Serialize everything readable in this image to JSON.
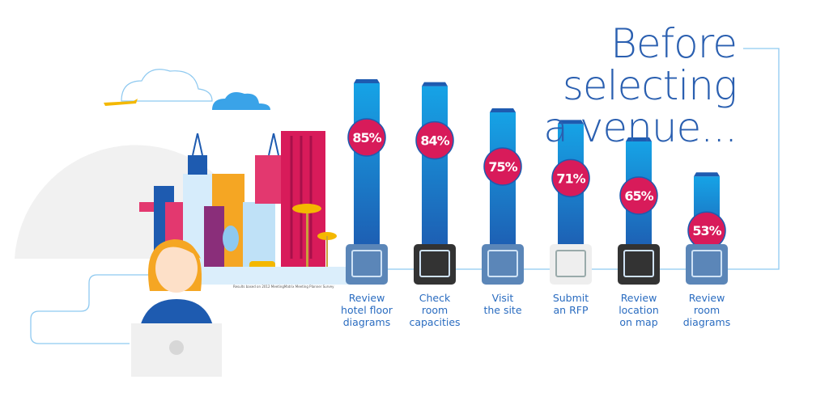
{
  "title": [
    "Before selecting",
    "a venue..."
  ],
  "source_note": "Results based on 2012 MeetingMatrix Meeting Planner Survey",
  "colors": {
    "bar": "#1a8fe0",
    "bar_dark": "#1e5bb0",
    "badge": "#d81b5a",
    "text": "#2a6cc0",
    "line": "#8ec9f0"
  },
  "chart_data": {
    "type": "bar",
    "categories": [
      "Review hotel floor diagrams",
      "Check room capacities",
      "Visit the site",
      "Submit an RFP",
      "Review location on map",
      "Review room diagrams"
    ],
    "label_lines": [
      [
        "Review",
        "hotel floor",
        "diagrams"
      ],
      [
        "Check",
        "room",
        "capacities"
      ],
      [
        "Visit",
        "the site"
      ],
      [
        "Submit",
        "an RFP"
      ],
      [
        "Review",
        "location",
        "on map"
      ],
      [
        "Review",
        "room",
        "diagrams"
      ]
    ],
    "values": [
      85,
      84,
      75,
      71,
      65,
      53
    ],
    "value_labels": [
      "85%",
      "84%",
      "75%",
      "71%",
      "65%",
      "53%"
    ],
    "icons": [
      "floor-plan-icon",
      "calculator-icon",
      "site-visit-icon",
      "rfp-document-icon",
      "map-tablet-icon",
      "room-diagram-icon"
    ],
    "unit": "%"
  }
}
